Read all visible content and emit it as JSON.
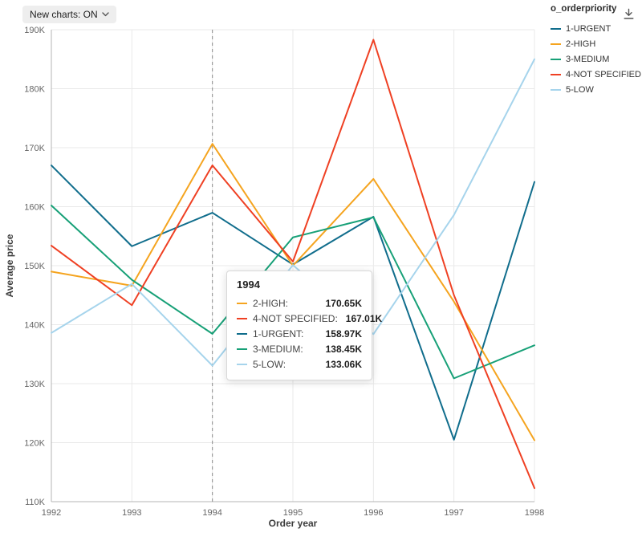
{
  "header": {
    "new_charts_label": "New charts: ON"
  },
  "legend": {
    "title": "o_orderpriority",
    "items": [
      {
        "label": "1-URGENT",
        "color": "#106D8C"
      },
      {
        "label": "2-HIGH",
        "color": "#F5A41F"
      },
      {
        "label": "3-MEDIUM",
        "color": "#17A077"
      },
      {
        "label": "4-NOT SPECIFIED",
        "color": "#EF4023"
      },
      {
        "label": "5-LOW",
        "color": "#A6D4EC"
      }
    ]
  },
  "chart_data": {
    "type": "line",
    "title": "",
    "xlabel": "Order year",
    "ylabel": "Average price",
    "x": [
      1992,
      1993,
      1994,
      1995,
      1996,
      1997,
      1998
    ],
    "ylim": [
      110000,
      190000
    ],
    "ytick_step": 10000,
    "ytick_labels": [
      "110K",
      "120K",
      "130K",
      "140K",
      "150K",
      "160K",
      "170K",
      "180K",
      "190K"
    ],
    "grid": true,
    "legend_position": "right",
    "highlighted_x": 1994,
    "series": [
      {
        "name": "1-URGENT",
        "color": "#106D8C",
        "values": [
          167000,
          153300,
          158970,
          150200,
          158300,
          120500,
          164200
        ]
      },
      {
        "name": "2-HIGH",
        "color": "#F5A41F",
        "values": [
          149000,
          146600,
          170650,
          150000,
          164700,
          143900,
          120400
        ]
      },
      {
        "name": "3-MEDIUM",
        "color": "#17A077",
        "values": [
          160200,
          147600,
          138450,
          154800,
          158200,
          130900,
          136500
        ]
      },
      {
        "name": "4-NOT SPECIFIED",
        "color": "#EF4023",
        "values": [
          153400,
          143300,
          167010,
          150700,
          188300,
          145000,
          112300
        ]
      },
      {
        "name": "5-LOW",
        "color": "#A6D4EC",
        "values": [
          138600,
          146900,
          133060,
          150100,
          138400,
          158600,
          185000
        ]
      }
    ]
  },
  "tooltip": {
    "title": "1994",
    "rows": [
      {
        "label": "2-HIGH:",
        "value": "170.65K",
        "color": "#F5A41F"
      },
      {
        "label": "4-NOT SPECIFIED:",
        "value": "167.01K",
        "color": "#EF4023"
      },
      {
        "label": "1-URGENT:",
        "value": "158.97K",
        "color": "#106D8C"
      },
      {
        "label": "3-MEDIUM:",
        "value": "138.45K",
        "color": "#17A077"
      },
      {
        "label": "5-LOW:",
        "value": "133.06K",
        "color": "#A6D4EC"
      }
    ]
  }
}
